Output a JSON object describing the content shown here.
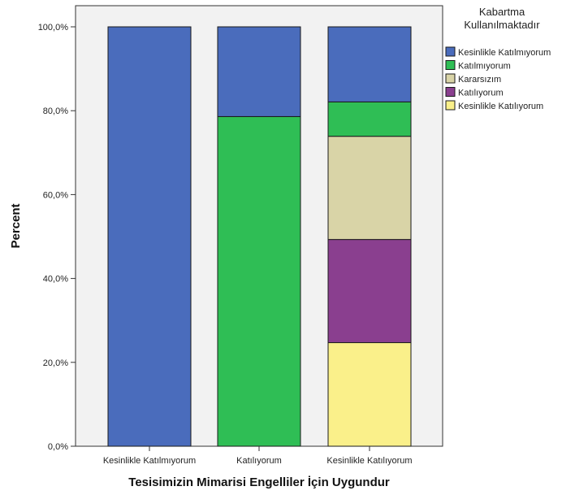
{
  "chart_data": {
    "type": "bar",
    "stacked": true,
    "categories": [
      "Kesinlikle Katılmıyorum",
      "Katılıyorum",
      "Kesinlikle Katılıyorum"
    ],
    "series": [
      {
        "name": "Kesinlikle Katılmıyorum",
        "color": "#4a6cbc",
        "values": [
          100.0,
          21.4,
          17.9
        ]
      },
      {
        "name": "Katılmıyorum",
        "color": "#2fbe55",
        "values": [
          0.0,
          78.6,
          8.2
        ]
      },
      {
        "name": "Kararsızım",
        "color": "#d9d4a7",
        "values": [
          0.0,
          0.0,
          24.6
        ]
      },
      {
        "name": "Katılıyorum",
        "color": "#8a3f8f",
        "values": [
          0.0,
          0.0,
          24.6
        ]
      },
      {
        "name": "Kesinlikle Katılıyorum",
        "color": "#faf08a",
        "values": [
          0.0,
          0.0,
          24.7
        ]
      }
    ],
    "stack_order": [
      "Kesinlikle Katılıyorum",
      "Katılıyorum",
      "Kararsızım",
      "Katılmıyorum",
      "Kesinlikle Katılmıyorum"
    ],
    "ylim": [
      0,
      100
    ],
    "yticks": [
      0,
      20,
      40,
      60,
      80,
      100
    ],
    "ytick_labels": [
      "0,0%",
      "20,0%",
      "40,0%",
      "60,0%",
      "80,0%",
      "100,0%"
    ],
    "xlabel": "Tesisimizin Mimarisi Engelliler İçin Uygundur",
    "ylabel": "Percent",
    "legend": {
      "title_lines": [
        "Kabartma",
        "Kullanılmaktadır"
      ],
      "placement": "right"
    },
    "plot_background": "#f2f2f2",
    "grid": false
  }
}
